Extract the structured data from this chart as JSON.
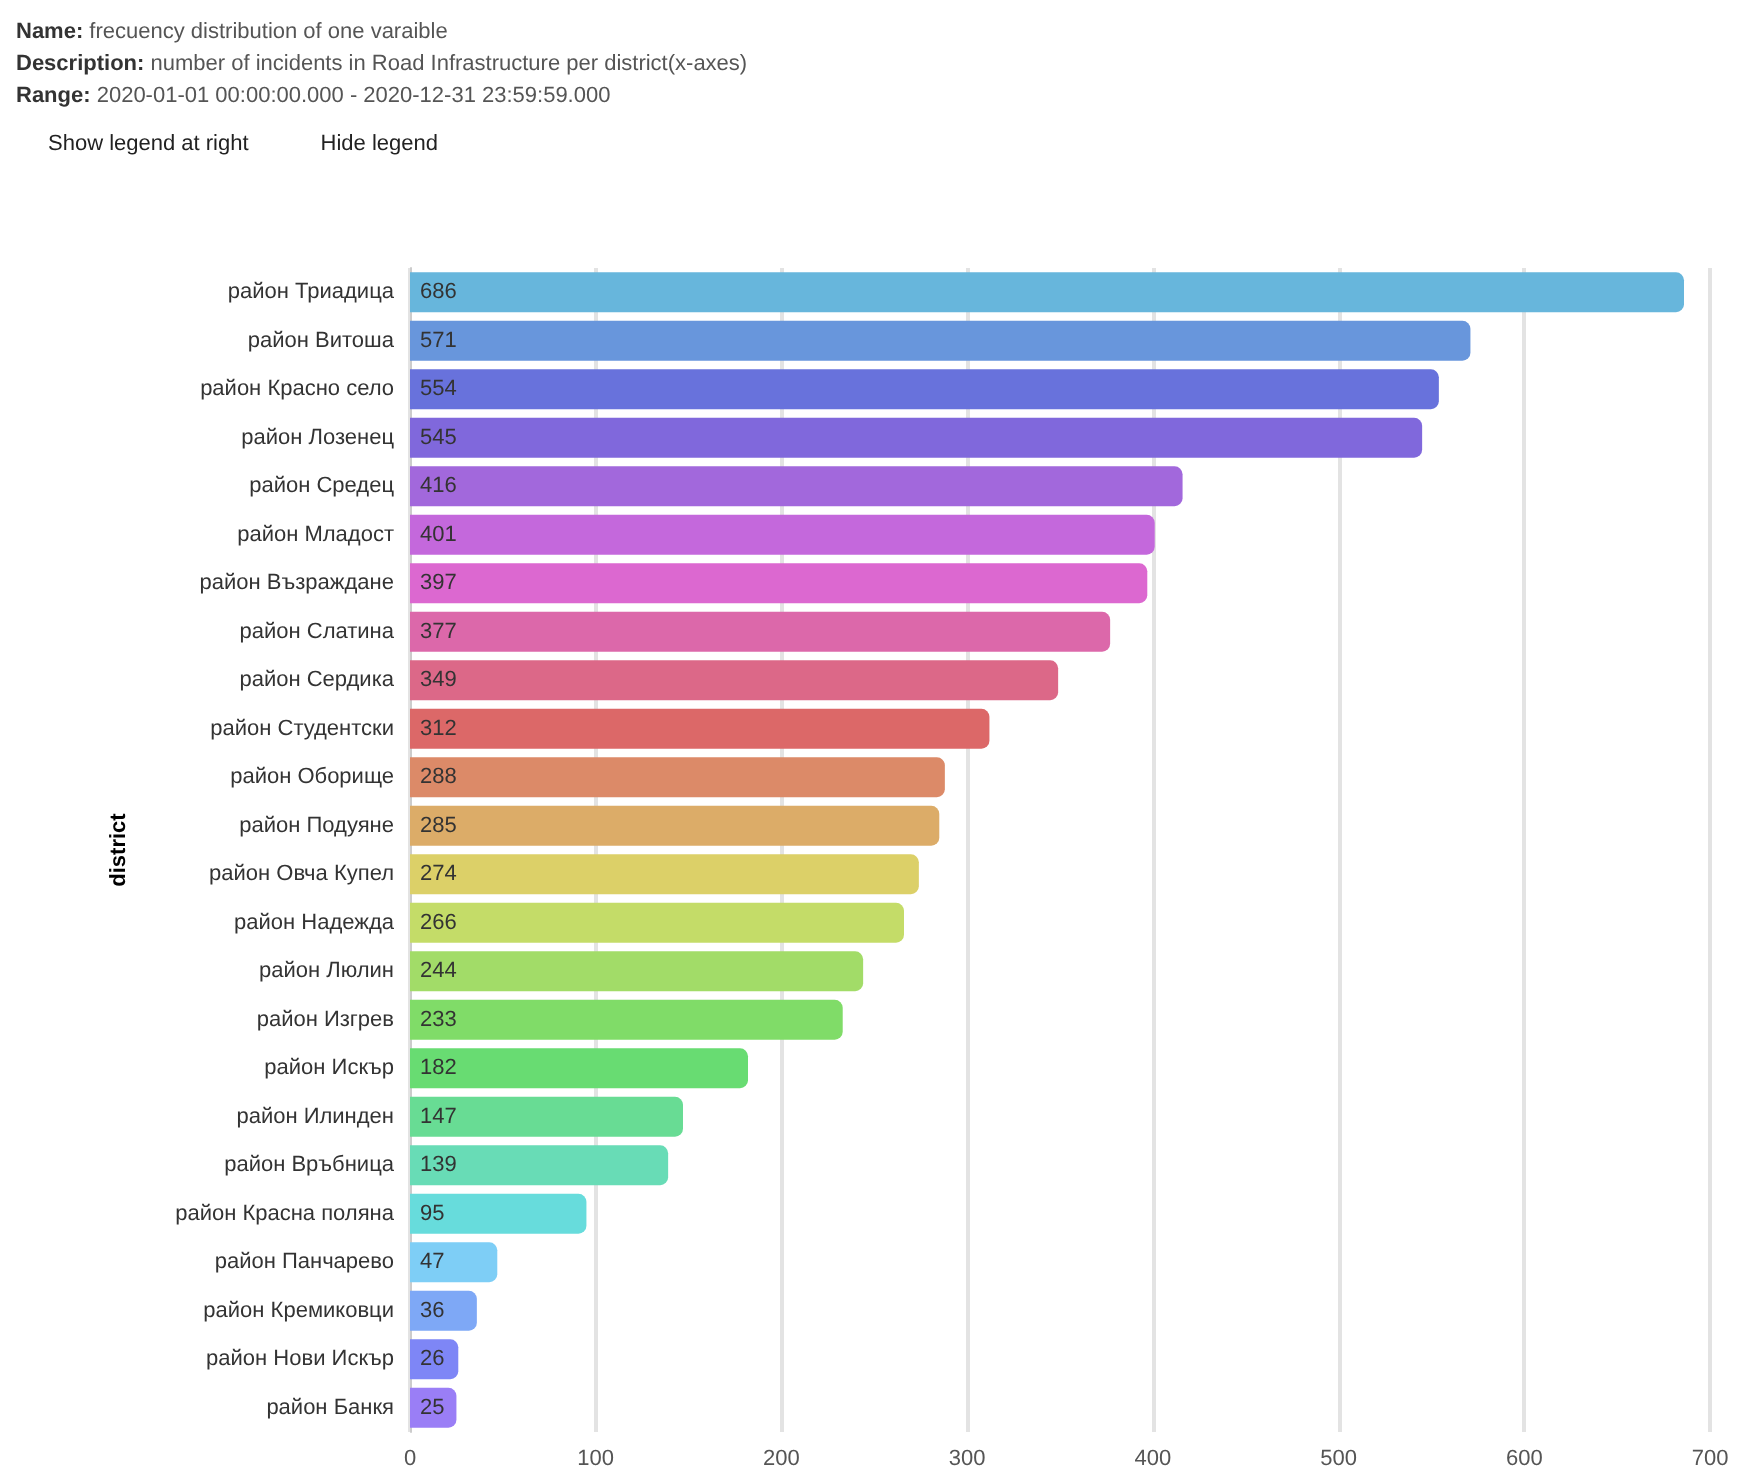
{
  "chart_data": {
    "type": "bar",
    "orientation": "horizontal",
    "title": "Name: frecuency distribution of one varaible",
    "subtitle": "Description: number of incidents in Road Infrastructure per district(x-axes)",
    "annotations": [
      "Range: 2020-01-01 00:00:00.000 - 2020-12-31 23:59:59.000",
      "Show legend at right",
      "Hide legend"
    ],
    "ylabel": "district",
    "categories": [
      "район Триадица",
      "район Витоша",
      "район Красно село",
      "район Лозенец",
      "район Средец",
      "район Младост",
      "район Възраждане",
      "район Слатина",
      "район Сердика",
      "район Студентски",
      "район Оборище",
      "район Подуяне",
      "район Овча Купел",
      "район Надежда",
      "район Люлин",
      "район Изгрев",
      "район Искър",
      "район Илинден",
      "район Връбница",
      "район Красна поляна",
      "район Панчарево",
      "район Кремиковци",
      "район Нови Искър",
      "район Банкя"
    ],
    "values": [
      686,
      571,
      554,
      545,
      416,
      401,
      397,
      377,
      349,
      312,
      288,
      285,
      274,
      266,
      244,
      233,
      182,
      147,
      139,
      95,
      47,
      36,
      26,
      25
    ],
    "colors": [
      "#67b6dc",
      "#6896dc",
      "#6872dc",
      "#8068dc",
      "#a268dc",
      "#c468dc",
      "#dc68d0",
      "#dc68aa",
      "#dc6888",
      "#dc6868",
      "#dc8a68",
      "#dcac68",
      "#dcd068",
      "#c4dc68",
      "#a2dc68",
      "#80dc68",
      "#68dc72",
      "#68dc94",
      "#68dcb6",
      "#67dcdc",
      "#7ecef6",
      "#7ea8f6",
      "#7e86f6",
      "#9a7ef6"
    ],
    "xlim": [
      0,
      700
    ],
    "xticks": [
      0,
      100,
      200,
      300,
      400,
      500,
      600,
      700
    ],
    "grid": "x",
    "data_labels": true
  }
}
